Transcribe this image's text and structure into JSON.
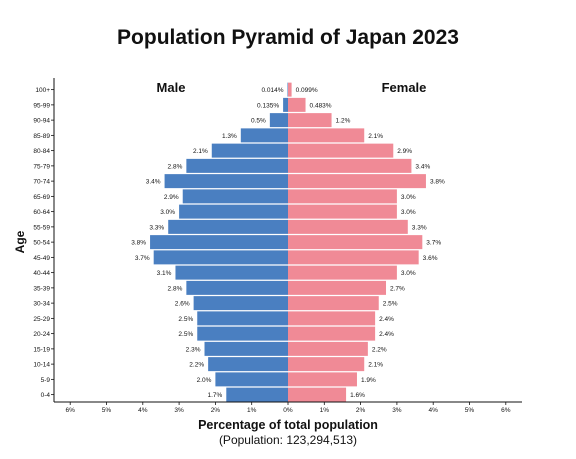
{
  "chart_data": {
    "type": "bar",
    "orientation": "horizontal-mirrored",
    "title": "Population Pyramid of Japan 2023",
    "xlabel": "Percentage of total population",
    "subtitle": "(Population: 123,294,513)",
    "ylabel": "Age",
    "categories": [
      "100+",
      "95-99",
      "90-94",
      "85-89",
      "80-84",
      "75-79",
      "70-74",
      "65-69",
      "60-64",
      "55-59",
      "50-54",
      "45-49",
      "40-44",
      "35-39",
      "30-34",
      "25-29",
      "20-24",
      "15-19",
      "10-14",
      "5-9",
      "0-4"
    ],
    "series": [
      {
        "name": "Male",
        "color": "#4a7fc1",
        "values": [
          0.014,
          0.135,
          0.5,
          1.3,
          2.1,
          2.8,
          3.4,
          2.9,
          3.0,
          3.3,
          3.8,
          3.7,
          3.1,
          2.8,
          2.6,
          2.5,
          2.5,
          2.3,
          2.2,
          2.0,
          1.7
        ],
        "labels": [
          "0.014%",
          "0.135%",
          "0.5%",
          "1.3%",
          "2.1%",
          "2.8%",
          "3.4%",
          "2.9%",
          "3.0%",
          "3.3%",
          "3.8%",
          "3.7%",
          "3.1%",
          "2.8%",
          "2.6%",
          "2.5%",
          "2.5%",
          "2.3%",
          "2.2%",
          "2.0%",
          "1.7%"
        ]
      },
      {
        "name": "Female",
        "color": "#f08a96",
        "values": [
          0.099,
          0.483,
          1.2,
          2.1,
          2.9,
          3.4,
          3.8,
          3.0,
          3.0,
          3.3,
          3.7,
          3.6,
          3.0,
          2.7,
          2.5,
          2.4,
          2.4,
          2.2,
          2.1,
          1.9,
          1.6
        ],
        "labels": [
          "0.099%",
          "0.483%",
          "1.2%",
          "2.1%",
          "2.9%",
          "3.4%",
          "3.8%",
          "3.0%",
          "3.0%",
          "3.3%",
          "3.7%",
          "3.6%",
          "3.0%",
          "2.7%",
          "2.5%",
          "2.4%",
          "2.4%",
          "2.2%",
          "2.1%",
          "1.9%",
          "1.6%"
        ]
      }
    ],
    "xlim": [
      -6,
      6
    ],
    "xticks": [
      "6%",
      "5%",
      "4%",
      "3%",
      "2%",
      "1%",
      "0%",
      "1%",
      "2%",
      "3%",
      "4%",
      "5%",
      "6%"
    ],
    "grid": false
  }
}
